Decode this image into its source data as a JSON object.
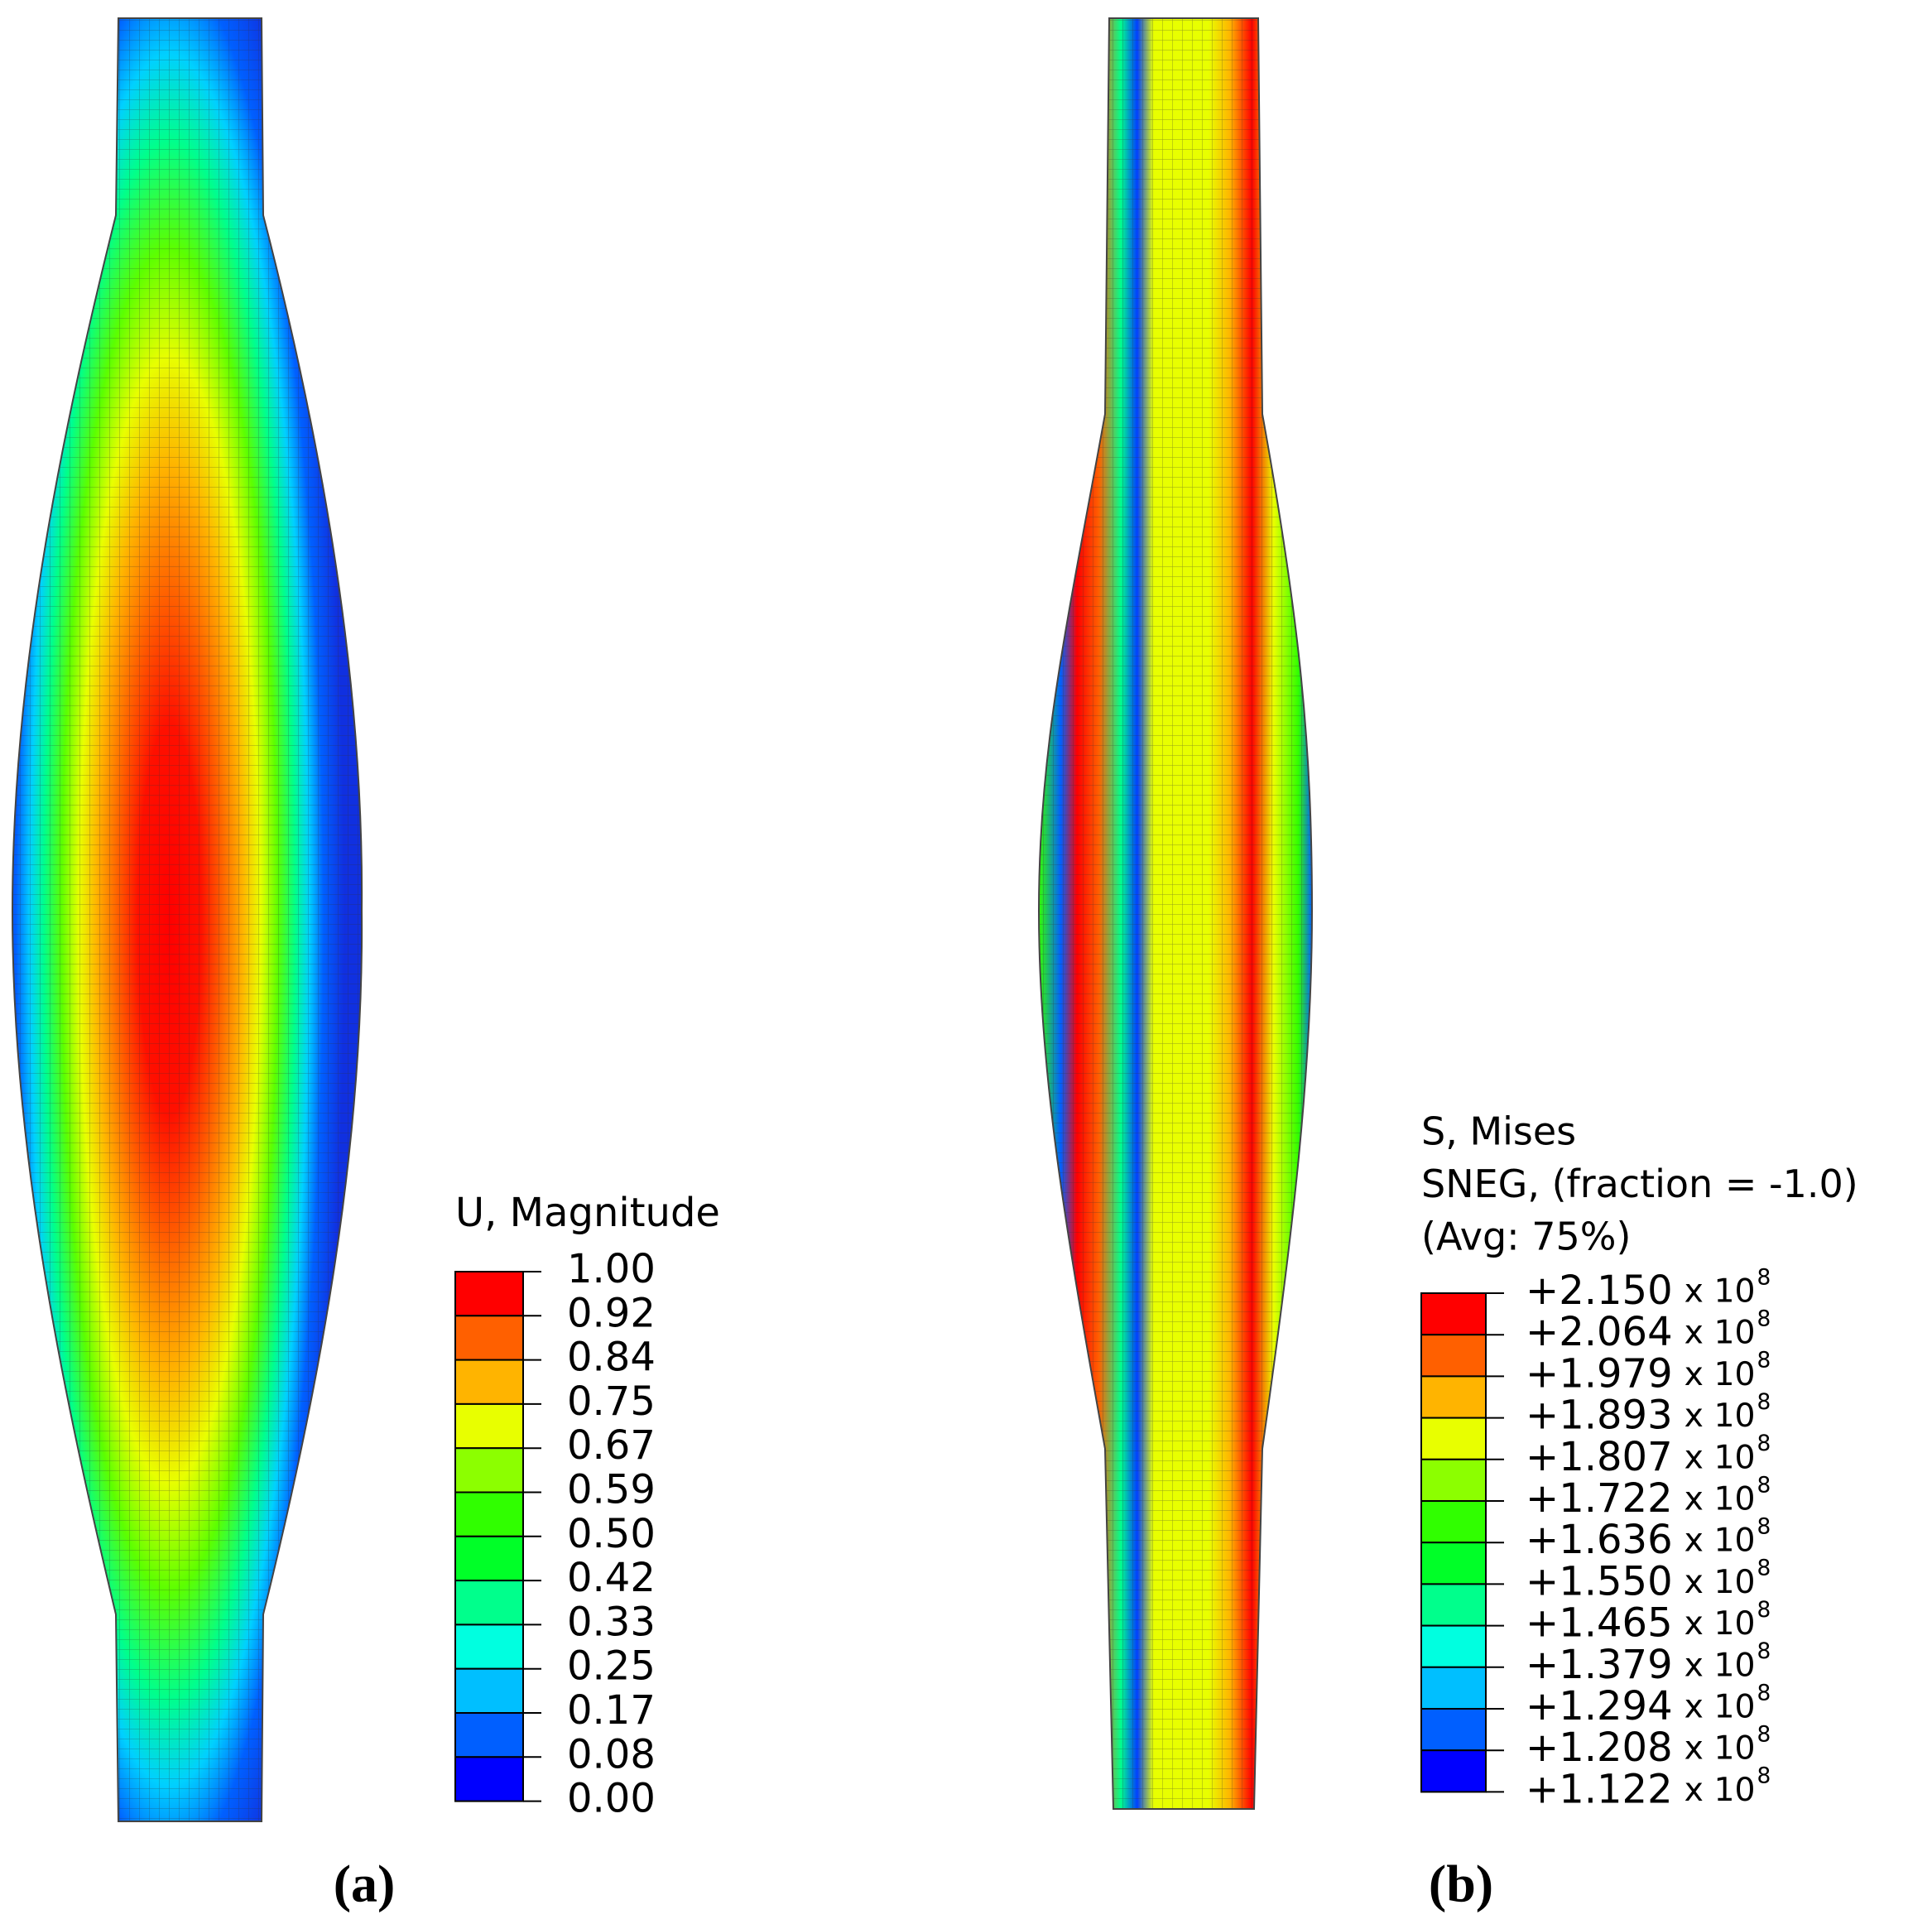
{
  "panel_a": {
    "label": "(a)",
    "legend": {
      "title": "U, Magnitude",
      "labels": [
        "1.00",
        "0.92",
        "0.84",
        "0.75",
        "0.67",
        "0.59",
        "0.50",
        "0.42",
        "0.33",
        "0.25",
        "0.17",
        "0.08",
        "0.00"
      ],
      "colors": [
        "#ff0000",
        "#ff6000",
        "#ffb400",
        "#e8ff00",
        "#8cff00",
        "#30ff00",
        "#00ff28",
        "#00ff8c",
        "#00ffe0",
        "#00bfff",
        "#005fff",
        "#0000ff"
      ]
    }
  },
  "panel_b": {
    "label": "(b)",
    "legend": {
      "title_lines": [
        "S, Mises",
        "SNEG, (fraction = -1.0)",
        "(Avg: 75%)"
      ],
      "labels": [
        "+2.150",
        "+2.064",
        "+1.979",
        "+1.893",
        "+1.807",
        "+1.722",
        "+1.636",
        "+1.550",
        "+1.465",
        "+1.379",
        "+1.294",
        "+1.208",
        "+1.122"
      ],
      "multiplier": "x 10",
      "exponent": "8",
      "colors": [
        "#ff0000",
        "#ff6000",
        "#ffb400",
        "#e8ff00",
        "#8cff00",
        "#30ff00",
        "#00ff28",
        "#00ff8c",
        "#00ffe0",
        "#00bfff",
        "#005fff",
        "#0000ff"
      ]
    }
  }
}
